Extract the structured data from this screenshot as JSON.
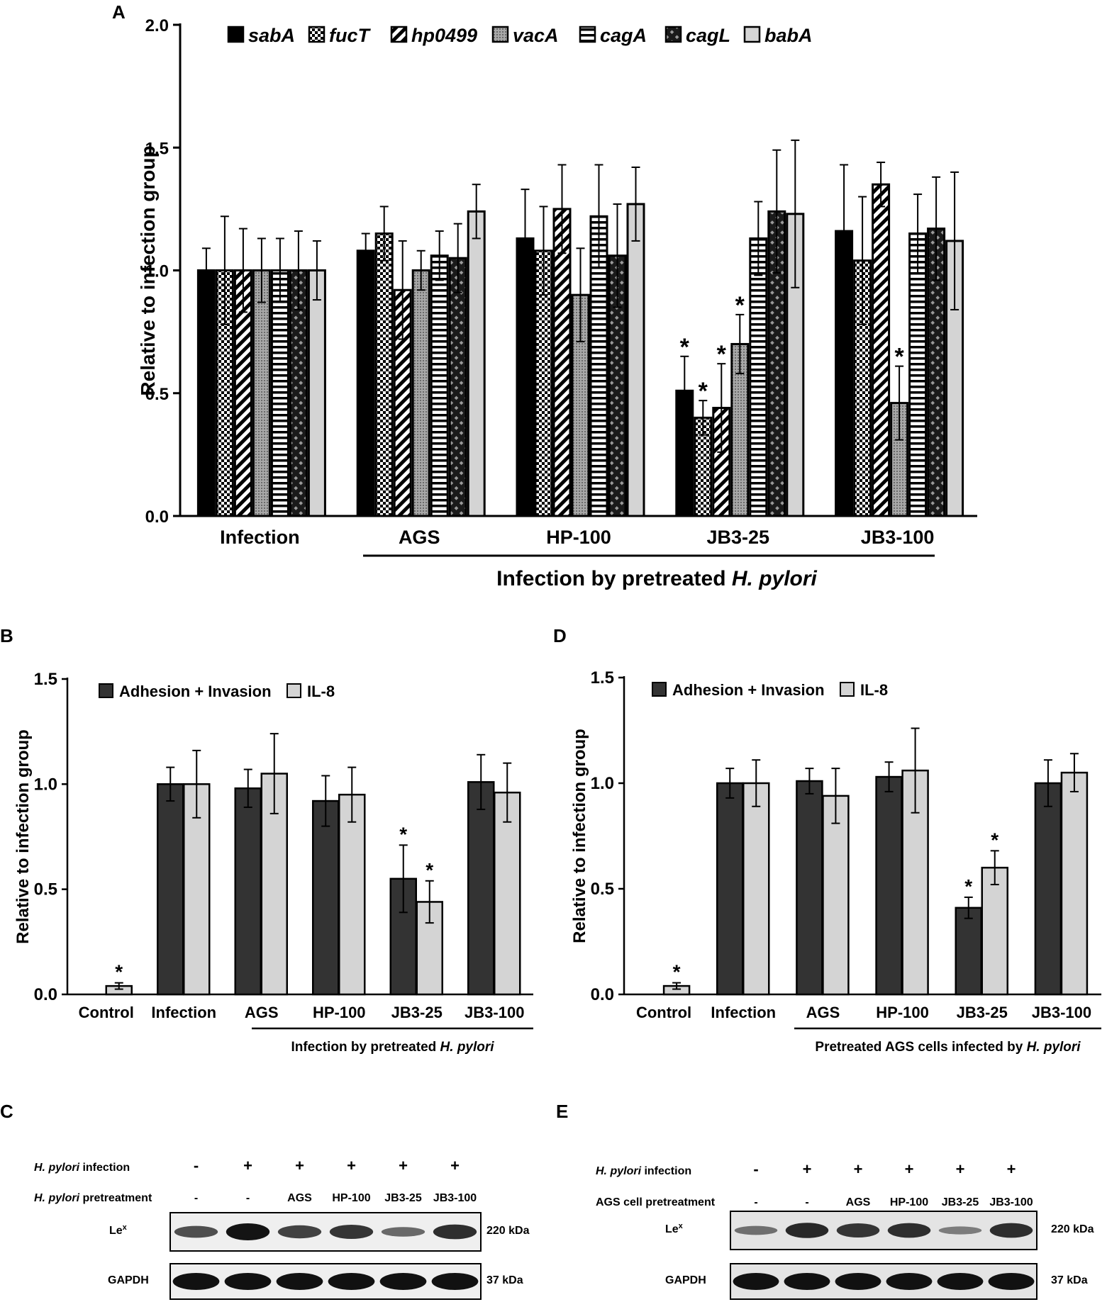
{
  "colors": {
    "black": "#000000",
    "dark": "#333333",
    "light": "#d4d4d4",
    "mid": "#bdbdbd"
  },
  "chart_data": [
    {
      "panel": "A",
      "type": "bar",
      "categories": [
        "Infection",
        "AGS",
        "HP-100",
        "JB3-25",
        "JB3-100"
      ],
      "group_label_prefix": "Infection by pretreated ",
      "group_label_italic": "H. pylori",
      "ylabel": "Relative to infection group",
      "ylim": [
        0,
        2.0
      ],
      "yticks": [
        "0.0",
        "0.5",
        "1.0",
        "1.5",
        "2.0"
      ],
      "legend_position": "top",
      "series": [
        {
          "name": "sabA",
          "pattern": "solid-black",
          "values": [
            1.0,
            1.08,
            1.13,
            0.51,
            1.16
          ],
          "errors": [
            0.09,
            0.07,
            0.2,
            0.14,
            0.27
          ],
          "sig": [
            false,
            false,
            false,
            true,
            false
          ]
        },
        {
          "name": "fucT",
          "pattern": "checker",
          "values": [
            1.0,
            1.15,
            1.08,
            0.4,
            1.04
          ],
          "errors": [
            0.22,
            0.11,
            0.18,
            0.07,
            0.26
          ],
          "sig": [
            false,
            false,
            false,
            true,
            false
          ]
        },
        {
          "name": "hp0499",
          "pattern": "diagonal",
          "values": [
            1.0,
            0.92,
            1.25,
            0.44,
            1.35
          ],
          "errors": [
            0.17,
            0.2,
            0.18,
            0.18,
            0.09
          ],
          "sig": [
            false,
            false,
            false,
            true,
            false
          ]
        },
        {
          "name": "vacA",
          "pattern": "dotted-gray",
          "values": [
            1.0,
            1.0,
            0.9,
            0.7,
            0.46
          ],
          "errors": [
            0.13,
            0.08,
            0.19,
            0.12,
            0.15
          ],
          "sig": [
            false,
            false,
            false,
            true,
            true
          ]
        },
        {
          "name": "cagA",
          "pattern": "horizontal",
          "values": [
            1.0,
            1.06,
            1.22,
            1.13,
            1.15
          ],
          "errors": [
            0.13,
            0.1,
            0.21,
            0.15,
            0.16
          ],
          "sig": [
            false,
            false,
            false,
            false,
            false
          ]
        },
        {
          "name": "cagL",
          "pattern": "crosshatch",
          "values": [
            1.0,
            1.05,
            1.06,
            1.24,
            1.17
          ],
          "errors": [
            0.16,
            0.14,
            0.21,
            0.25,
            0.21
          ],
          "sig": [
            false,
            false,
            false,
            false,
            false
          ]
        },
        {
          "name": "babA",
          "pattern": "light-gray",
          "values": [
            1.0,
            1.24,
            1.27,
            1.23,
            1.12
          ],
          "errors": [
            0.12,
            0.11,
            0.15,
            0.3,
            0.28
          ],
          "sig": [
            false,
            false,
            false,
            false,
            false
          ]
        }
      ]
    },
    {
      "panel": "B",
      "type": "bar",
      "categories": [
        "Control",
        "Infection",
        "AGS",
        "HP-100",
        "JB3-25",
        "JB3-100"
      ],
      "group_label_prefix": "Infection by pretreated ",
      "group_label_italic": "H. pylori",
      "ylabel": "Relative to infection group",
      "ylim": [
        0,
        1.5
      ],
      "yticks": [
        "0.0",
        "0.5",
        "1.0",
        "1.5"
      ],
      "legend_position": "top-left",
      "series": [
        {
          "name": "Adhesion + Invasion",
          "values": [
            0.0,
            1.0,
            0.98,
            0.92,
            0.55,
            1.01
          ],
          "errors": [
            0.0,
            0.08,
            0.09,
            0.12,
            0.16,
            0.13
          ],
          "sig": [
            false,
            false,
            false,
            false,
            true,
            false
          ]
        },
        {
          "name": "IL-8",
          "values": [
            0.04,
            1.0,
            1.05,
            0.95,
            0.44,
            0.96
          ],
          "errors": [
            0.015,
            0.16,
            0.19,
            0.13,
            0.1,
            0.14
          ],
          "sig": [
            true,
            false,
            false,
            false,
            true,
            false
          ]
        }
      ]
    },
    {
      "panel": "D",
      "type": "bar",
      "categories": [
        "Control",
        "Infection",
        "AGS",
        "HP-100",
        "JB3-25",
        "JB3-100"
      ],
      "group_label_prefix": "Pretreated AGS cells infected by ",
      "group_label_italic": "H. pylori",
      "ylabel": "Relative to infection group",
      "ylim": [
        0,
        1.5
      ],
      "yticks": [
        "0.0",
        "0.5",
        "1.0",
        "1.5"
      ],
      "legend_position": "top-left",
      "series": [
        {
          "name": "Adhesion + Invasion",
          "values": [
            0.0,
            1.0,
            1.01,
            1.03,
            0.41,
            1.0
          ],
          "errors": [
            0.0,
            0.07,
            0.06,
            0.07,
            0.05,
            0.11
          ],
          "sig": [
            false,
            false,
            false,
            false,
            true,
            false
          ]
        },
        {
          "name": "IL-8",
          "values": [
            0.04,
            1.0,
            0.94,
            1.06,
            0.6,
            1.05
          ],
          "errors": [
            0.015,
            0.11,
            0.13,
            0.2,
            0.08,
            0.09
          ],
          "sig": [
            true,
            false,
            false,
            false,
            true,
            false
          ]
        }
      ]
    }
  ],
  "panels": {
    "a": {
      "label": "A"
    },
    "b": {
      "label": "B"
    },
    "c": {
      "label": "C"
    },
    "d": {
      "label": "D"
    },
    "e": {
      "label": "E"
    }
  },
  "blot_c": {
    "row1_italic": "H. pylori",
    "row1_rest": " infection",
    "row2_italic": "H. pylori",
    "row2_rest": " pretreatment",
    "infection_signs": [
      "-",
      "+",
      "+",
      "+",
      "+",
      "+"
    ],
    "pretreatment": [
      "-",
      "-",
      "AGS",
      "HP-100",
      "JB3-25",
      "JB3-100"
    ],
    "lex_label": "Le",
    "lex_sup": "x",
    "lex_size": "220 kDa",
    "gapdh_label": "GAPDH",
    "gapdh_size": "37 kDa",
    "lex_intensity": [
      0.55,
      1.0,
      0.65,
      0.75,
      0.35,
      0.8
    ]
  },
  "blot_e": {
    "row1_italic": "H. pylori",
    "row1_rest": " infection",
    "row2_label": "AGS cell pretreatment",
    "infection_signs": [
      "-",
      "+",
      "+",
      "+",
      "+",
      "+"
    ],
    "pretreatment": [
      "-",
      "-",
      "AGS",
      "HP-100",
      "JB3-25",
      "JB3-100"
    ],
    "lex_label": "Le",
    "lex_sup": "x",
    "lex_size": "220 kDa",
    "gapdh_label": "GAPDH",
    "gapdh_size": "37 kDa",
    "lex_intensity": [
      0.3,
      0.85,
      0.75,
      0.8,
      0.2,
      0.8
    ]
  }
}
